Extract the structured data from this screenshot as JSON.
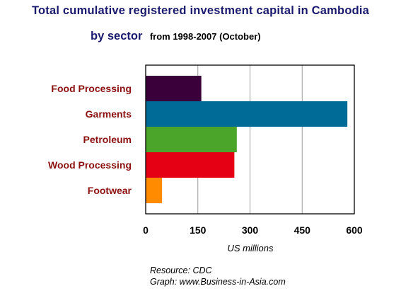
{
  "chart_data": {
    "type": "bar",
    "orientation": "horizontal",
    "title": "Total cumulative registered investment capital in Cambodia",
    "subtitle_main": "by sector",
    "subtitle_period": "from  1998-2007 (October)",
    "categories": [
      "Food Processing",
      "Garments",
      "Petroleum",
      "Wood Processing",
      "Footwear"
    ],
    "values": [
      160,
      580,
      262,
      255,
      47
    ],
    "colors": [
      "#3a003a",
      "#006b96",
      "#4aa52a",
      "#e60014",
      "#ff8c00"
    ],
    "xlabel": "US millions",
    "xlim": [
      0,
      600
    ],
    "xticks": [
      0,
      150,
      300,
      450,
      600
    ],
    "grid": true
  },
  "credits": {
    "resource": "Resource: CDC",
    "graph": "Graph: www.Business-in-Asia.com"
  }
}
